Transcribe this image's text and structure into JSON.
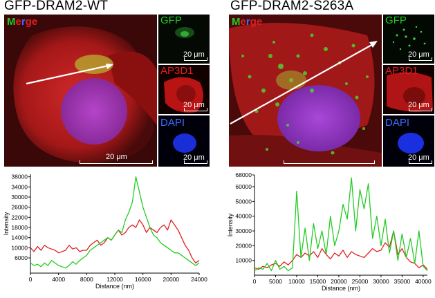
{
  "left": {
    "title": "GFP-DRAM2-WT",
    "merge_label": [
      "M",
      "e",
      "r",
      "g",
      "e"
    ],
    "gfp_label": "GFP",
    "ap3d1_label": "AP3D1",
    "dapi_label": "DAPI",
    "scalebar_main": "20 μm",
    "scalebar_small": "20 μm"
  },
  "right": {
    "title": "GFP-DRAM2-S263A",
    "merge_label": [
      "M",
      "e",
      "r",
      "g",
      "e"
    ],
    "gfp_label": "GFP",
    "ap3d1_label": "AP3D1",
    "dapi_label": "DAPI",
    "scalebar_small": "20 μm"
  },
  "colors": {
    "green": "#22cc22",
    "red": "#e02020",
    "blue": "#3a6cff"
  },
  "chart_data": [
    {
      "type": "line",
      "title": "",
      "xlabel": "Distance (nm)",
      "ylabel": "Intensity",
      "xlim": [
        0,
        24000
      ],
      "ylim": [
        0,
        39000
      ],
      "xticks": [
        "0",
        "4000",
        "8000",
        "12000",
        "16000",
        "20000",
        "24000"
      ],
      "yticks": [
        "6000",
        "10000",
        "14000",
        "18000",
        "22000",
        "26000",
        "30000",
        "34000",
        "38000"
      ],
      "series": [
        {
          "color": "red",
          "x": [
            0,
            500,
            1000,
            1500,
            2000,
            2500,
            3000,
            3500,
            4000,
            4500,
            5000,
            5500,
            6000,
            6500,
            7000,
            7500,
            8000,
            8500,
            9000,
            9500,
            10000,
            10500,
            11000,
            11500,
            12000,
            12500,
            13000,
            13500,
            14000,
            14500,
            15000,
            15500,
            16000,
            16500,
            17000,
            17500,
            18000,
            18500,
            19000,
            19500,
            20000,
            20500,
            21000,
            21500,
            22000,
            22500,
            23000,
            23500,
            24000
          ],
          "y": [
            10000,
            8500,
            10500,
            9000,
            11000,
            10000,
            9500,
            9000,
            8000,
            8500,
            9000,
            11000,
            9500,
            10000,
            8500,
            9000,
            9000,
            11000,
            12000,
            13000,
            11000,
            12000,
            14000,
            13000,
            15000,
            17000,
            15000,
            16000,
            18000,
            19000,
            18000,
            21000,
            19000,
            16000,
            18000,
            17000,
            16000,
            18000,
            19000,
            17000,
            21000,
            19000,
            17000,
            14000,
            11000,
            9000,
            6000,
            4000,
            5000
          ]
        },
        {
          "color": "green",
          "x": [
            0,
            500,
            1000,
            1500,
            2000,
            2500,
            3000,
            3500,
            4000,
            4500,
            5000,
            5500,
            6000,
            6500,
            7000,
            7500,
            8000,
            8500,
            9000,
            9500,
            10000,
            10500,
            11000,
            11500,
            12000,
            12500,
            13000,
            13500,
            14000,
            14500,
            15000,
            15500,
            16000,
            16500,
            17000,
            17500,
            18000,
            18500,
            19000,
            19500,
            20000,
            20500,
            21000,
            21500,
            22000,
            22500,
            23000,
            23500,
            24000
          ],
          "y": [
            4000,
            3000,
            3500,
            2500,
            4000,
            3000,
            5000,
            4000,
            3000,
            2500,
            2000,
            3000,
            4500,
            3500,
            5000,
            6000,
            7000,
            9000,
            10000,
            11000,
            12000,
            13000,
            14000,
            13000,
            15000,
            17000,
            16000,
            21000,
            24000,
            28000,
            38000,
            32000,
            26000,
            22000,
            18000,
            15000,
            14000,
            12000,
            11000,
            10000,
            9000,
            8000,
            8000,
            7000,
            6000,
            5000,
            4000,
            3000,
            4000
          ]
        }
      ]
    },
    {
      "type": "line",
      "title": "",
      "xlabel": "Distance (nm)",
      "ylabel": "Intensity",
      "xlim": [
        0,
        41000
      ],
      "ylim": [
        0,
        68000
      ],
      "xticks": [
        "0",
        "5000",
        "10000",
        "15000",
        "20000",
        "25000",
        "30000",
        "35000",
        "40000"
      ],
      "yticks": [
        "10000",
        "20000",
        "30000",
        "40000",
        "50000",
        "60000",
        "68000"
      ],
      "series": [
        {
          "color": "red",
          "x": [
            0,
            1000,
            2000,
            3000,
            4000,
            5000,
            6000,
            7000,
            8000,
            9000,
            10000,
            11000,
            12000,
            13000,
            14000,
            15000,
            16000,
            17000,
            18000,
            19000,
            20000,
            21000,
            22000,
            23000,
            24000,
            25000,
            26000,
            27000,
            28000,
            29000,
            30000,
            31000,
            32000,
            33000,
            34000,
            35000,
            36000,
            37000,
            38000,
            39000,
            40000,
            41000
          ],
          "y": [
            5000,
            4000,
            6000,
            5000,
            7000,
            8000,
            6000,
            9000,
            7000,
            10000,
            14000,
            12000,
            15000,
            13000,
            16000,
            12000,
            18000,
            14000,
            11000,
            15000,
            13000,
            17000,
            12000,
            16000,
            14000,
            13000,
            12000,
            15000,
            18000,
            16000,
            17000,
            22000,
            19000,
            30000,
            14000,
            18000,
            12000,
            9000,
            8000,
            5000,
            7000,
            4000
          ]
        },
        {
          "color": "green",
          "x": [
            0,
            1000,
            2000,
            3000,
            4000,
            5000,
            6000,
            7000,
            8000,
            9000,
            10000,
            11000,
            12000,
            13000,
            14000,
            15000,
            16000,
            17000,
            18000,
            19000,
            20000,
            21000,
            22000,
            23000,
            24000,
            25000,
            26000,
            27000,
            28000,
            29000,
            30000,
            31000,
            32000,
            33000,
            34000,
            35000,
            36000,
            37000,
            38000,
            39000,
            40000,
            41000
          ],
          "y": [
            3000,
            5000,
            4000,
            8000,
            3000,
            10000,
            4000,
            6000,
            3000,
            5000,
            57000,
            12000,
            32000,
            10000,
            35000,
            18000,
            30000,
            14000,
            40000,
            20000,
            30000,
            48000,
            38000,
            66000,
            30000,
            58000,
            45000,
            62000,
            25000,
            40000,
            20000,
            38000,
            15000,
            30000,
            10000,
            28000,
            12000,
            25000,
            8000,
            30000,
            6000,
            3000
          ]
        }
      ]
    }
  ]
}
